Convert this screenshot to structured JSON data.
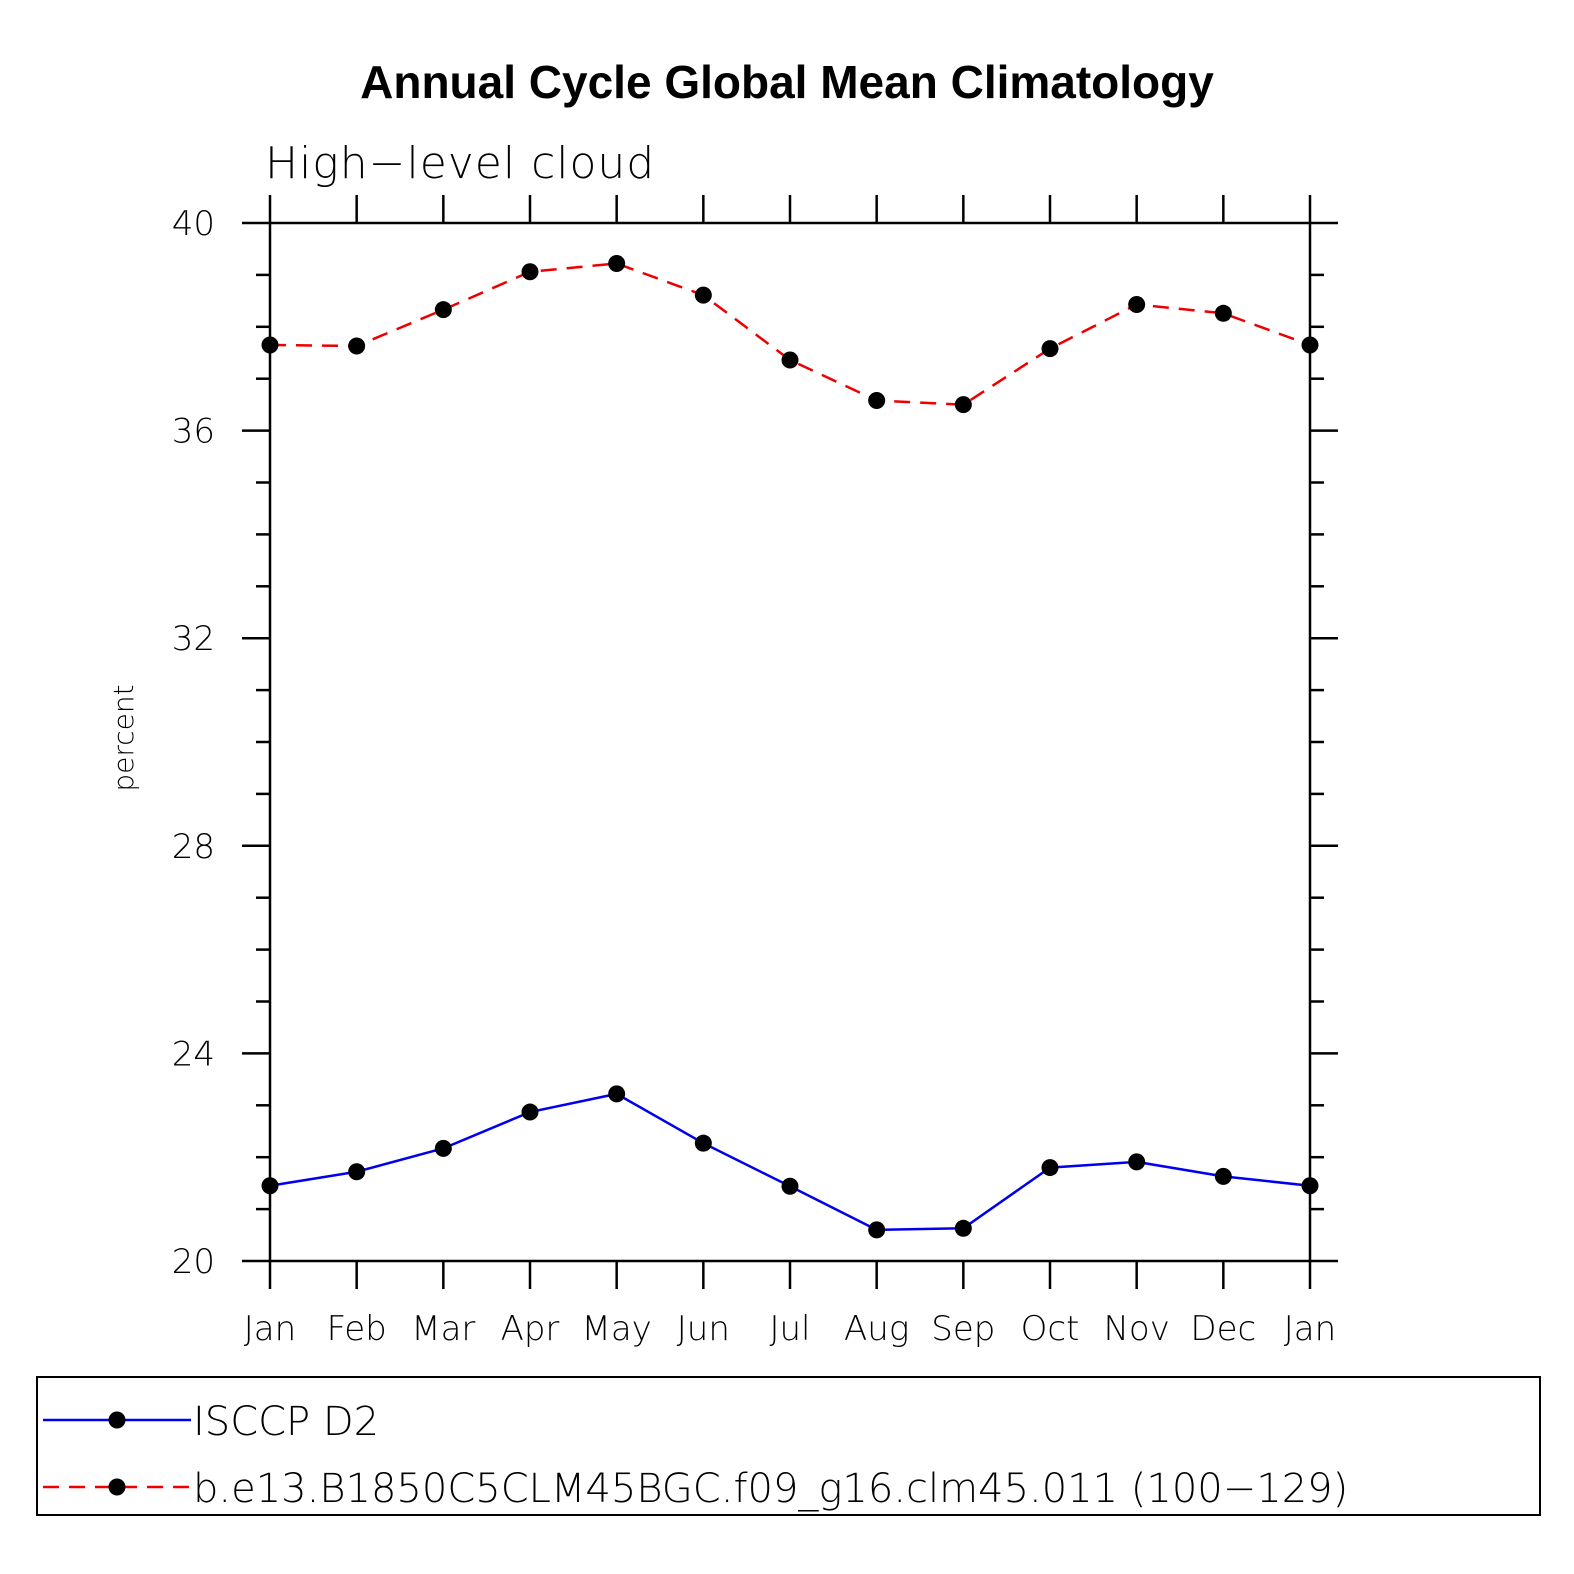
{
  "chart_data": {
    "type": "line",
    "title": "Annual Cycle Global Mean Climatology",
    "subtitle": "High−level cloud",
    "xlabel": "",
    "ylabel": "percent",
    "categories": [
      "Jan",
      "Feb",
      "Mar",
      "Apr",
      "May",
      "Jun",
      "Jul",
      "Aug",
      "Sep",
      "Oct",
      "Nov",
      "Dec",
      "Jan"
    ],
    "ylim": [
      20,
      40
    ],
    "yticks": [
      20,
      24,
      28,
      32,
      36,
      40
    ],
    "yminor_step": 1,
    "grid": false,
    "legend_position": "bottom",
    "series": [
      {
        "name": "ISCCP D2",
        "color": "#0000ee",
        "style": "solid",
        "marker": "circle",
        "values": [
          21.45,
          21.72,
          22.17,
          22.87,
          23.22,
          22.27,
          21.44,
          20.6,
          20.63,
          21.8,
          21.91,
          21.63,
          21.45
        ]
      },
      {
        "name": "b.e13.B1850C5CLM45BGC.f09_g16.clm45.011 (100−129)",
        "color": "#ee0000",
        "style": "dashed",
        "marker": "circle",
        "values": [
          37.65,
          37.63,
          38.33,
          39.06,
          39.22,
          38.61,
          37.36,
          36.58,
          36.5,
          37.58,
          38.43,
          38.26,
          37.65
        ]
      }
    ]
  }
}
